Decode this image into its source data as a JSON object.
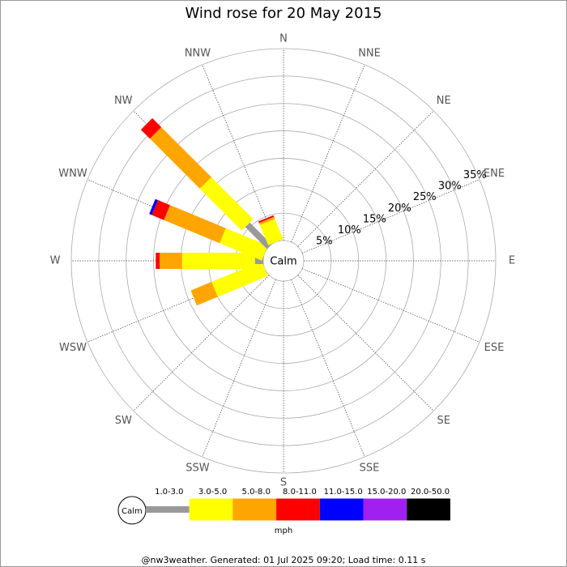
{
  "chart_data": {
    "type": "windrose",
    "title": "Wind rose for 20 May 2015",
    "center_label": "Calm",
    "directions": [
      "N",
      "NNE",
      "NE",
      "ENE",
      "E",
      "ESE",
      "SE",
      "SSE",
      "S",
      "SSW",
      "SW",
      "WSW",
      "W",
      "WNW",
      "NW",
      "NNW"
    ],
    "rlim": [
      0,
      35
    ],
    "rticks": [
      {
        "value": 5,
        "label": "5%"
      },
      {
        "value": 10,
        "label": "10%"
      },
      {
        "value": 15,
        "label": "15%"
      },
      {
        "value": 20,
        "label": "20%"
      },
      {
        "value": 25,
        "label": "25%"
      },
      {
        "value": 30,
        "label": "30%"
      },
      {
        "value": 35,
        "label": "35%"
      }
    ],
    "series": [
      {
        "name": "1.0-3.0",
        "color": "#999999",
        "values": [
          0,
          0,
          0,
          0,
          0,
          0,
          0,
          0,
          0,
          0,
          0,
          0,
          1.5,
          0,
          5.6,
          0
        ]
      },
      {
        "name": "3.0-5.0",
        "color": "#ffff00",
        "values": [
          0,
          0,
          0,
          0,
          0,
          0,
          0,
          0,
          0,
          0,
          0,
          9.9,
          13.3,
          8.3,
          10.8,
          4.0
        ]
      },
      {
        "name": "5.0-8.0",
        "color": "#ffa500",
        "values": [
          0,
          0,
          0,
          0,
          0,
          0,
          0,
          0,
          0,
          0,
          0,
          4.1,
          4.1,
          11.0,
          12.9,
          0.4
        ]
      },
      {
        "name": "8.0-11.0",
        "color": "#ff0000",
        "values": [
          0,
          0,
          0,
          0,
          0,
          0,
          0,
          0,
          0,
          0,
          0,
          0,
          0.7,
          2.4,
          2.3,
          0.3
        ]
      },
      {
        "name": "11.0-15.0",
        "color": "#0000ff",
        "values": [
          0,
          0,
          0,
          0,
          0,
          0,
          0,
          0,
          0,
          0,
          0,
          0,
          0,
          0.5,
          0,
          0
        ]
      },
      {
        "name": "15.0-20.0",
        "color": "#a020f0",
        "values": [
          0,
          0,
          0,
          0,
          0,
          0,
          0,
          0,
          0,
          0,
          0,
          0,
          0,
          0,
          0,
          0
        ]
      },
      {
        "name": "20.0-50.0",
        "color": "#000000",
        "values": [
          0,
          0,
          0,
          0,
          0,
          0,
          0,
          0,
          0,
          0,
          0,
          0,
          0,
          0,
          0,
          0
        ]
      }
    ],
    "legend_calm": "Calm",
    "legend_unit": "mph",
    "footer": "@nw3weather. Generated: 01 Jul 2025 09:20; Load time: 0.11 s"
  }
}
